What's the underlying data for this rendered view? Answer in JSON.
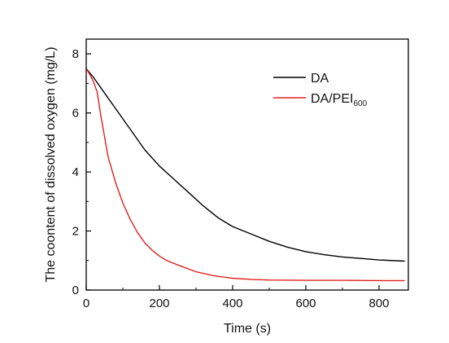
{
  "chart_data": {
    "type": "line",
    "xlabel": "Time (s)",
    "ylabel": "The coontent of dissolved oxygen (mg/L)",
    "xlim": [
      0,
      880
    ],
    "ylim": [
      0,
      8.5
    ],
    "xticks": [
      0,
      200,
      400,
      600,
      800
    ],
    "yticks": [
      0,
      2,
      4,
      6,
      8
    ],
    "legend_position": "top-right",
    "series": [
      {
        "name": "DA",
        "name_sub": "",
        "color": "#000000",
        "x": [
          0,
          20,
          40,
          80,
          120,
          160,
          200,
          240,
          280,
          320,
          360,
          400,
          450,
          500,
          550,
          600,
          650,
          700,
          750,
          800,
          870
        ],
        "y": [
          7.5,
          7.2,
          6.85,
          6.15,
          5.45,
          4.75,
          4.2,
          3.75,
          3.3,
          2.85,
          2.45,
          2.15,
          1.9,
          1.65,
          1.45,
          1.3,
          1.2,
          1.12,
          1.07,
          1.02,
          0.98
        ]
      },
      {
        "name": "DA/PEI",
        "name_sub": "600",
        "color": "#e02020",
        "x": [
          0,
          10,
          20,
          30,
          40,
          60,
          80,
          100,
          120,
          140,
          160,
          180,
          200,
          220,
          250,
          300,
          350,
          400,
          450,
          500,
          600,
          700,
          800,
          870
        ],
        "y": [
          7.5,
          7.3,
          7.05,
          6.7,
          5.9,
          4.5,
          3.65,
          2.95,
          2.4,
          1.95,
          1.6,
          1.35,
          1.15,
          1.0,
          0.85,
          0.62,
          0.48,
          0.4,
          0.36,
          0.34,
          0.33,
          0.33,
          0.32,
          0.32
        ]
      }
    ]
  }
}
